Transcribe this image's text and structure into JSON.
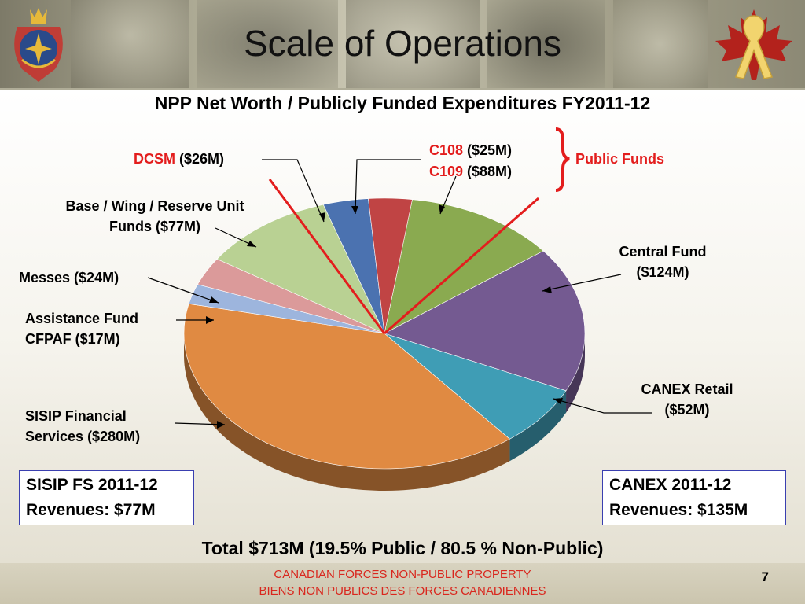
{
  "slide": {
    "title": "Scale of Operations",
    "subtitle": "NPP Net Worth / Publicly Funded Expenditures FY2011-12",
    "total": "Total $713M (19.5% Public / 80.5 % Non-Public)",
    "footer_line1": "CANADIAN FORCES NON-PUBLIC PROPERTY",
    "footer_line2": "BIENS NON PUBLICS DES FORCES CANADIENNES",
    "page_number": "7",
    "public_funds_label": "Public Funds"
  },
  "labels": {
    "dcsm_name": "DCSM",
    "dcsm_value": " ($26M)",
    "c108_name": "C108",
    "c108_value": " ($25M)",
    "c109_name": "C109",
    "c109_value": " ($88M)",
    "base_line1": "Base / Wing / Reserve Unit",
    "base_line2": "Funds ($77M)",
    "messes": "Messes ($24M)",
    "assist_line1": "Assistance Fund",
    "assist_line2": "CFPAF ($17M)",
    "sisip_line1": "SISIP Financial",
    "sisip_line2": "Services ($280M)",
    "central_line1": "Central Fund",
    "central_line2": "($124M)",
    "canex_line1": "CANEX Retail",
    "canex_line2": "($52M)"
  },
  "boxes": {
    "sisip_line1": "SISIP FS 2011-12",
    "sisip_line2": "Revenues: $77M",
    "canex_line1": "CANEX 2011-12",
    "canex_line2": "Revenues: $135M"
  },
  "chart_data": {
    "type": "pie",
    "title": "NPP Net Worth / Publicly Funded Expenditures FY2011-12",
    "unit": "$M",
    "slices": [
      {
        "label": "C109",
        "value": 88,
        "color": "#8aaa50",
        "public": true
      },
      {
        "label": "Central Fund",
        "value": 124,
        "color": "#745a91",
        "public": false
      },
      {
        "label": "CANEX Retail",
        "value": 52,
        "color": "#3f9db5",
        "public": false
      },
      {
        "label": "SISIP Financial Services",
        "value": 280,
        "color": "#e08a42",
        "public": false
      },
      {
        "label": "Assistance Fund CFPAF",
        "value": 17,
        "color": "#9db5dd",
        "public": false
      },
      {
        "label": "Messes",
        "value": 24,
        "color": "#db9a9a",
        "public": false
      },
      {
        "label": "Base / Wing / Reserve Unit Funds",
        "value": 77,
        "color": "#b9d193",
        "public": false
      },
      {
        "label": "DCSM",
        "value": 26,
        "color": "#4b72b0",
        "public": true
      },
      {
        "label": "C108",
        "value": 25,
        "color": "#c04444",
        "public": true
      }
    ],
    "total": 713
  }
}
